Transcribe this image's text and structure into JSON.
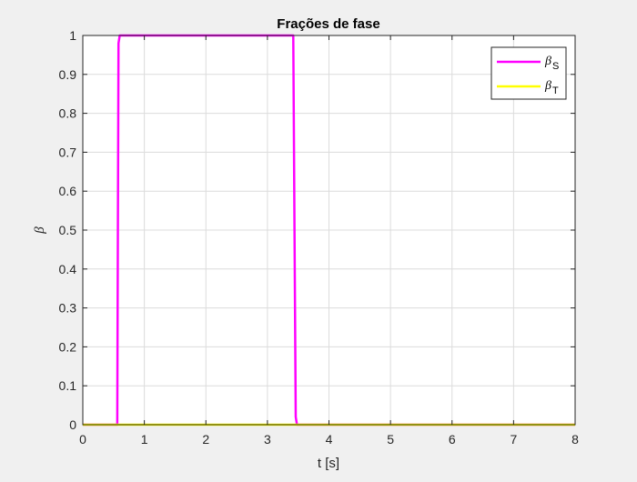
{
  "chart_data": {
    "type": "line",
    "title": "Frações de fase",
    "xlabel": "t [s]",
    "ylabel": "β",
    "xlim": [
      0,
      8
    ],
    "ylim": [
      0,
      1
    ],
    "xticks": [
      0,
      1,
      2,
      3,
      4,
      5,
      6,
      7,
      8
    ],
    "yticks": [
      0,
      0.1,
      0.2,
      0.3,
      0.4,
      0.5,
      0.6,
      0.7,
      0.8,
      0.9,
      1
    ],
    "grid": true,
    "legend_position": "top-right",
    "series": [
      {
        "name": "β_S",
        "name_main": "β",
        "name_sub": "S",
        "color": "#ff00ff",
        "x": [
          0,
          0.56,
          0.57,
          0.58,
          0.6,
          3.42,
          3.44,
          3.46,
          3.48,
          8
        ],
        "y": [
          0,
          0,
          0.5,
          0.98,
          1,
          1,
          0.5,
          0.02,
          0,
          0
        ]
      },
      {
        "name": "β_T",
        "name_main": "β",
        "name_sub": "T",
        "color": "#ffff00",
        "x": [
          0,
          8
        ],
        "y": [
          0,
          0
        ]
      }
    ]
  }
}
